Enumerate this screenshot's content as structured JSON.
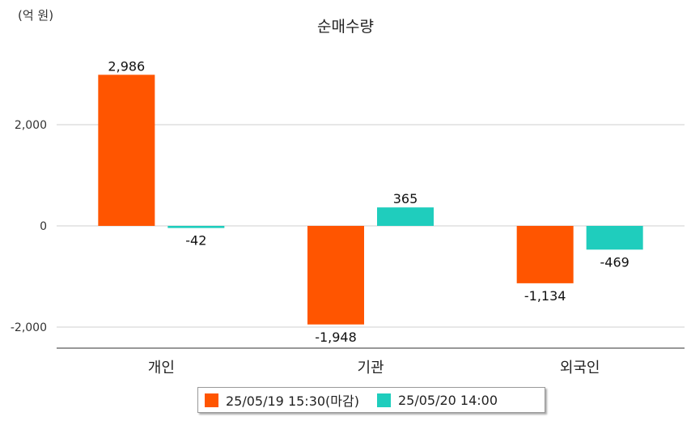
{
  "chart_data": {
    "type": "bar",
    "title": "순매수량",
    "unit_label": "(억 원)",
    "categories": [
      "개인",
      "기관",
      "외국인"
    ],
    "series": [
      {
        "name": "25/05/19 15:30(마감)",
        "color": "#ff5500",
        "values": [
          2986,
          -1948,
          -1134
        ],
        "labels": [
          "2,986",
          "-1,948",
          "-1,134"
        ]
      },
      {
        "name": "25/05/20 14:00",
        "color": "#1fcdbd",
        "values": [
          -42,
          365,
          -469
        ],
        "labels": [
          "-42",
          "365",
          "-469"
        ]
      }
    ],
    "yticks": [
      2000,
      0,
      -2000
    ],
    "ytick_labels": [
      "2,000",
      "0",
      "-2,000"
    ],
    "ylim": [
      -2400,
      3200
    ],
    "grid": true,
    "legend_position": "bottom"
  }
}
